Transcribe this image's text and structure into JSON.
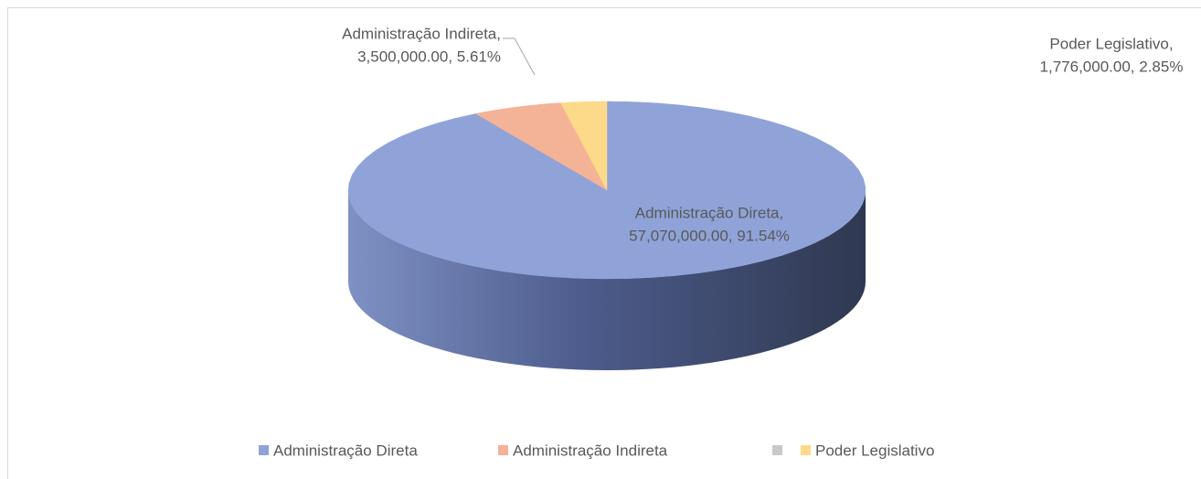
{
  "chart_data": {
    "type": "pie3d",
    "categories": [
      "Administração Direta",
      "Administração Indireta",
      null,
      "Poder Legislativo"
    ],
    "values": [
      57070000,
      3500000,
      null,
      1776000
    ],
    "value_labels": [
      [
        "Administração Direta,",
        "57,070,000.00, 91.54%"
      ],
      [
        "Administração Indireta,",
        "3,500,000.00, 5.61%"
      ],
      null,
      [
        "Poder Legislativo,",
        "1,776,000.00, 2.85%"
      ]
    ],
    "colors": [
      "#8fa3d8",
      "#f4b297",
      "#c9c9c9",
      "#fdd98a"
    ],
    "legend": "bottom"
  }
}
